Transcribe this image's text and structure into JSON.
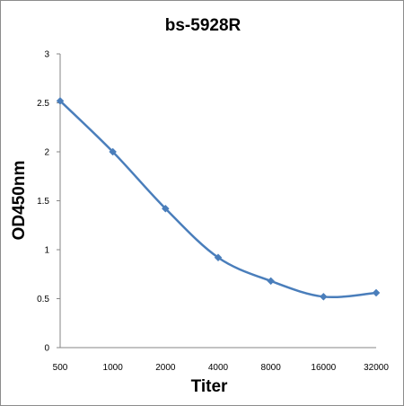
{
  "chart_data": {
    "type": "line",
    "title": "bs-5928R",
    "xlabel": "Titer",
    "ylabel": "OD450nm",
    "categories": [
      "500",
      "1000",
      "2000",
      "4000",
      "8000",
      "16000",
      "32000"
    ],
    "series": [
      {
        "values": [
          2.52,
          2.0,
          1.42,
          0.92,
          0.68,
          0.52,
          0.56
        ],
        "color": "#4a7ebb",
        "marker": "diamond",
        "smooth": true
      }
    ],
    "ylim": [
      0,
      3
    ],
    "yticks": [
      "0",
      "0.5",
      "1",
      "1.5",
      "2",
      "2.5",
      "3"
    ],
    "grid": false,
    "legend": "none"
  }
}
